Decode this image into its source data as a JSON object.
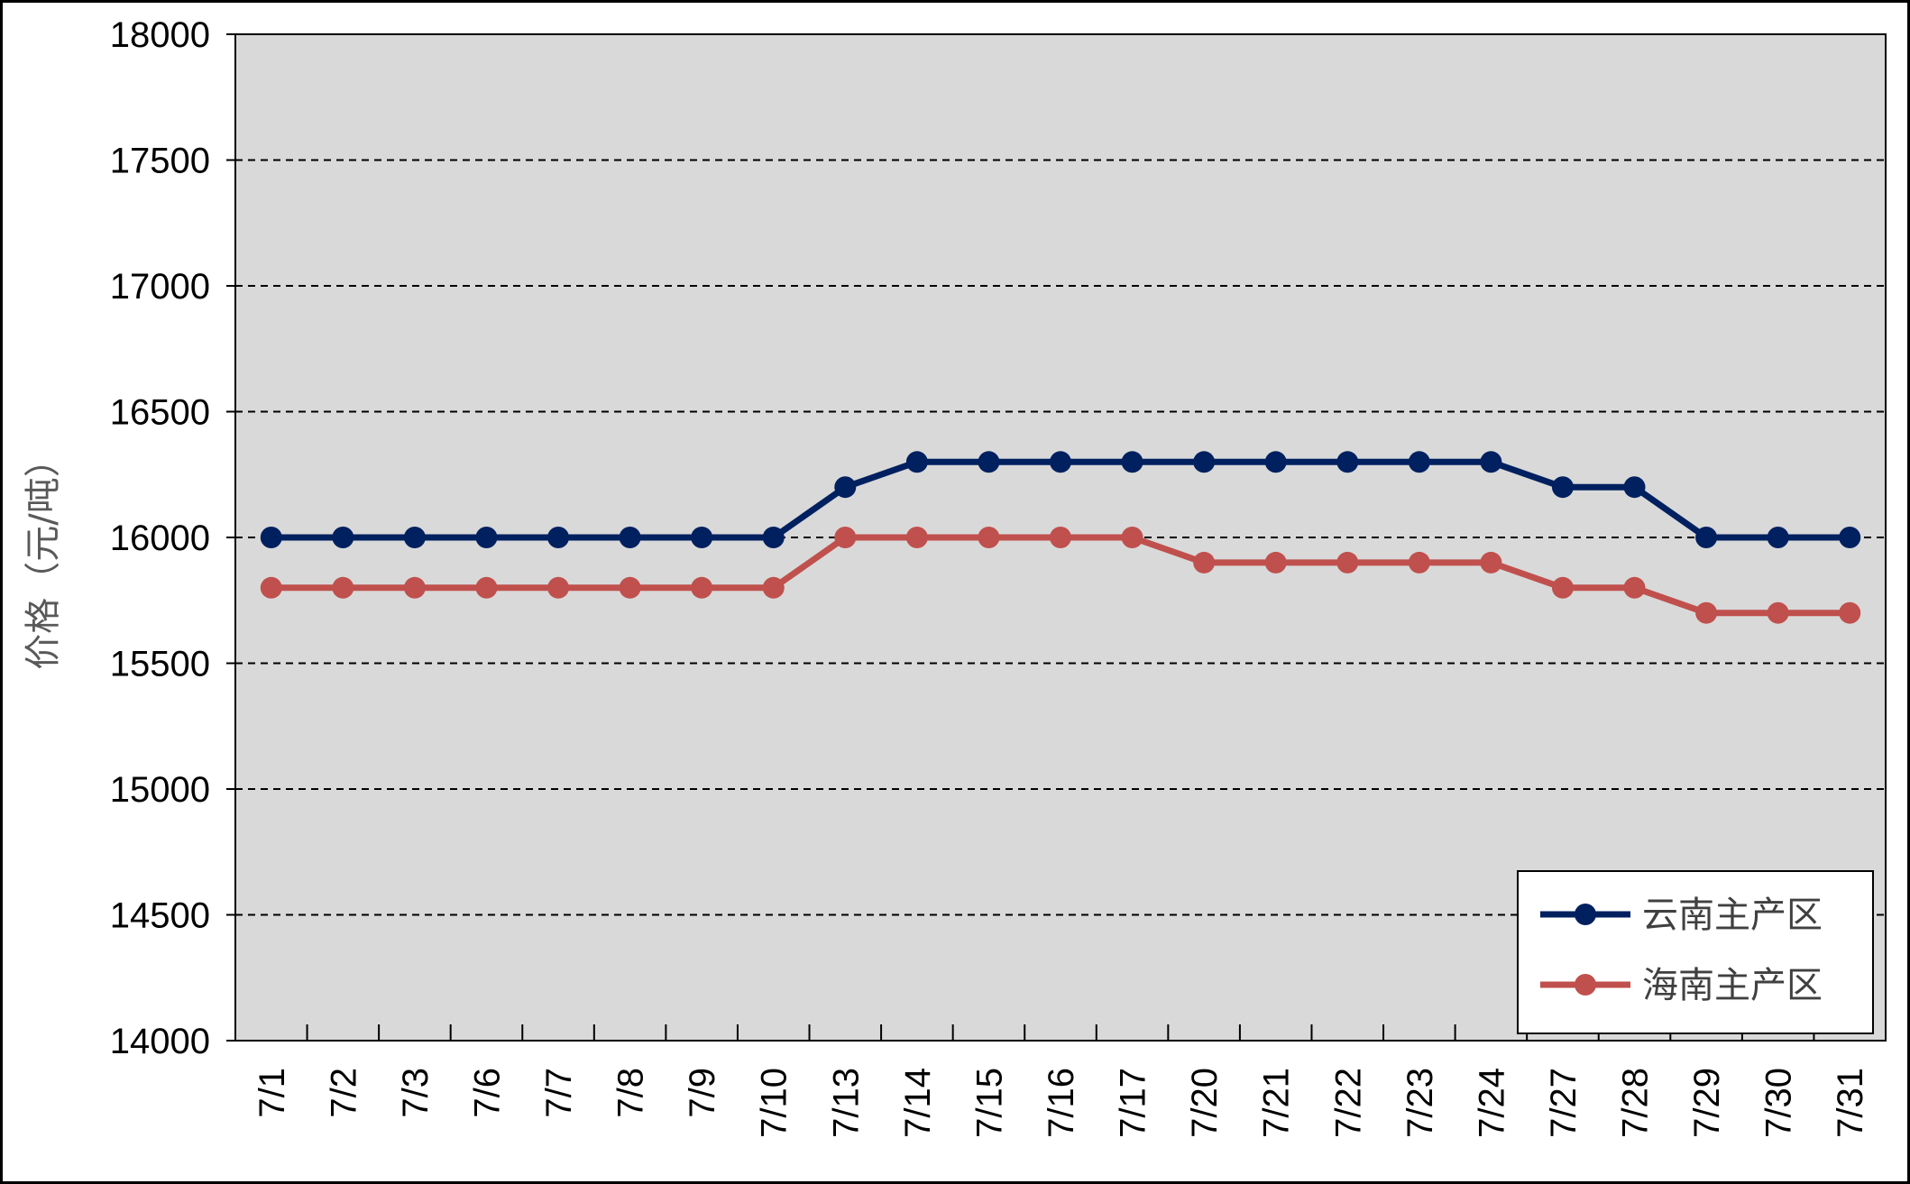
{
  "chart_data": {
    "type": "line",
    "title": "",
    "xlabel": "",
    "ylabel": "价格（元/吨）",
    "ylim": [
      14000,
      18000
    ],
    "yticks": [
      "14000",
      "14500",
      "15000",
      "15500",
      "16000",
      "16500",
      "17000",
      "17500",
      "18000"
    ],
    "grid": true,
    "legend_position": "bottom-right",
    "categories": [
      "7/1",
      "7/2",
      "7/3",
      "7/6",
      "7/7",
      "7/8",
      "7/9",
      "7/10",
      "7/13",
      "7/14",
      "7/15",
      "7/16",
      "7/17",
      "7/20",
      "7/21",
      "7/22",
      "7/23",
      "7/24",
      "7/27",
      "7/28",
      "7/29",
      "7/30",
      "7/31"
    ],
    "series": [
      {
        "name": "云南主产区",
        "color": "#002060",
        "values": [
          16000,
          16000,
          16000,
          16000,
          16000,
          16000,
          16000,
          16000,
          16200,
          16300,
          16300,
          16300,
          16300,
          16300,
          16300,
          16300,
          16300,
          16300,
          16200,
          16200,
          16000,
          16000,
          16000
        ]
      },
      {
        "name": "海南主产区",
        "color": "#C0504D",
        "values": [
          15800,
          15800,
          15800,
          15800,
          15800,
          15800,
          15800,
          15800,
          16000,
          16000,
          16000,
          16000,
          16000,
          15900,
          15900,
          15900,
          15900,
          15900,
          15800,
          15800,
          15700,
          15700,
          15700
        ]
      }
    ],
    "plot_background": "#D9D9D9",
    "grid_color": "#000000"
  }
}
